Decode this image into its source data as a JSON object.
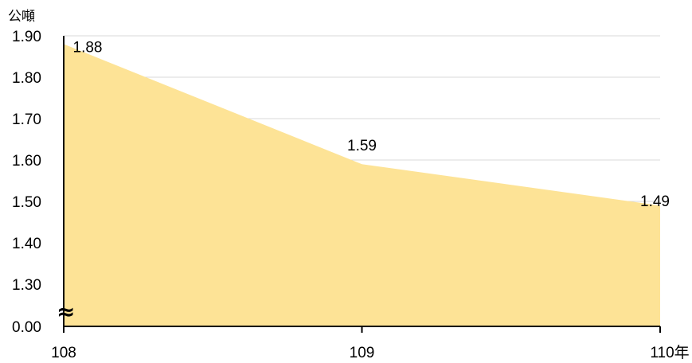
{
  "chart_data": {
    "type": "area",
    "title": "",
    "ylabel": "公噸",
    "xlabel": "",
    "x": [
      "108",
      "109",
      "110"
    ],
    "x_tick_labels": [
      "108",
      "109",
      "110年"
    ],
    "series": [
      {
        "values": [
          1.88,
          1.59,
          1.49
        ],
        "data_labels": [
          "1.88",
          "1.59",
          "1.49"
        ]
      }
    ],
    "ylim": [
      1.2,
      1.9
    ],
    "y_ticks": [
      1.9,
      1.8,
      1.7,
      1.6,
      1.5,
      1.4,
      1.3
    ],
    "y_tick_labels": [
      "1.90",
      "1.80",
      "1.70",
      "1.60",
      "1.50",
      "1.40",
      "1.30",
      "0.00"
    ],
    "axis_break_symbol": "≈",
    "axis_break": true,
    "grid": true,
    "legend": "none",
    "colors": {
      "area": "#fde396",
      "grid": "#d9d9d9",
      "axis": "#000000"
    }
  }
}
